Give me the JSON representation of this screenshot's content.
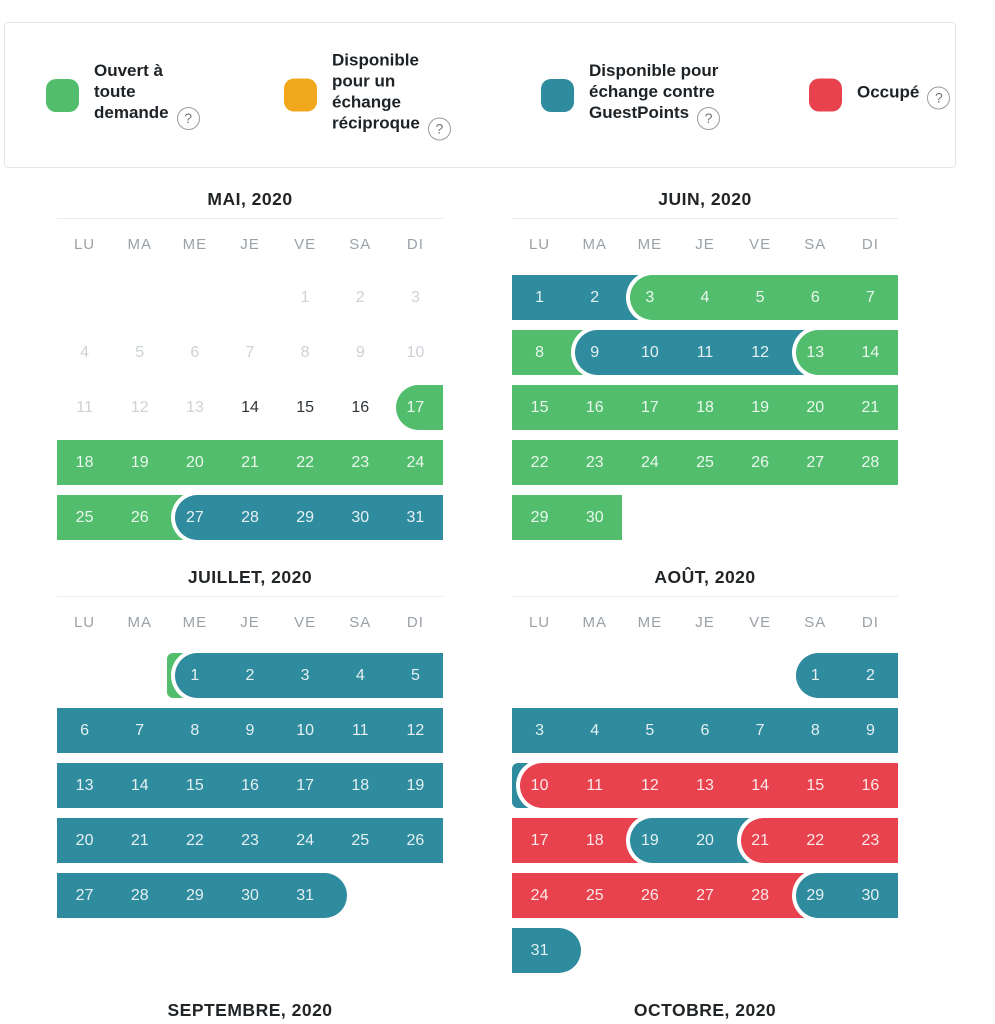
{
  "legend": {
    "items": [
      {
        "name": "open-to-any-request",
        "label": "Ouvert à\ntoute\ndemande",
        "color": "#52BE6D",
        "help": "?"
      },
      {
        "name": "reciprocal-exchange",
        "label": "Disponible\npour un\néchange\nréciproque",
        "color": "#F2A81D",
        "help": "?"
      },
      {
        "name": "guestpoints-exchange",
        "label": "Disponible pour\néchange contre\nGuestPoints",
        "color": "#2F8B9E",
        "help": "?"
      },
      {
        "name": "occupied",
        "label": "Occupé",
        "color": "#E8424E",
        "help": "?"
      }
    ]
  },
  "colors": {
    "green": "#52BE6D",
    "orange": "#F2A81D",
    "teal": "#2F8B9E",
    "red": "#E8424E"
  },
  "weekdays": [
    "LU",
    "MA",
    "ME",
    "JE",
    "VE",
    "SA",
    "DI"
  ],
  "months": [
    {
      "title": "MAI, 2020",
      "weeks": [
        {
          "days": [
            null,
            null,
            null,
            null,
            {
              "n": 1,
              "cls": "past"
            },
            {
              "n": 2,
              "cls": "past"
            },
            {
              "n": 3,
              "cls": "past"
            }
          ],
          "bars": []
        },
        {
          "days": [
            {
              "n": 4,
              "cls": "past"
            },
            {
              "n": 5,
              "cls": "past"
            },
            {
              "n": 6,
              "cls": "past"
            },
            {
              "n": 7,
              "cls": "past"
            },
            {
              "n": 8,
              "cls": "past"
            },
            {
              "n": 9,
              "cls": "past"
            },
            {
              "n": 10,
              "cls": "past"
            }
          ],
          "bars": []
        },
        {
          "days": [
            {
              "n": 11,
              "cls": "past"
            },
            {
              "n": 12,
              "cls": "past"
            },
            {
              "n": 13,
              "cls": "past"
            },
            {
              "n": 14,
              "cls": "plain"
            },
            {
              "n": 15,
              "cls": "plain"
            },
            {
              "n": 16,
              "cls": "plain"
            },
            {
              "n": 17,
              "cls": "on"
            }
          ],
          "bars": [
            {
              "s": 6,
              "e": 6,
              "c": "green",
              "capL": true
            }
          ]
        },
        {
          "days": [
            {
              "n": 18,
              "cls": "on"
            },
            {
              "n": 19,
              "cls": "on"
            },
            {
              "n": 20,
              "cls": "on"
            },
            {
              "n": 21,
              "cls": "on"
            },
            {
              "n": 22,
              "cls": "on"
            },
            {
              "n": 23,
              "cls": "on"
            },
            {
              "n": 24,
              "cls": "on"
            }
          ],
          "bars": [
            {
              "s": 0,
              "e": 6,
              "c": "green"
            }
          ]
        },
        {
          "days": [
            {
              "n": 25,
              "cls": "on"
            },
            {
              "n": 26,
              "cls": "on"
            },
            {
              "n": 27,
              "cls": "on"
            },
            {
              "n": 28,
              "cls": "on"
            },
            {
              "n": 29,
              "cls": "on"
            },
            {
              "n": 30,
              "cls": "on"
            },
            {
              "n": 31,
              "cls": "on"
            }
          ],
          "bars": [
            {
              "s": 0,
              "e": 1,
              "c": "green",
              "tail": true
            },
            {
              "s": 2,
              "e": 6,
              "c": "teal",
              "capL": true
            }
          ]
        }
      ]
    },
    {
      "title": "JUIN, 2020",
      "weeks": [
        {
          "days": [
            {
              "n": 1,
              "cls": "on"
            },
            {
              "n": 2,
              "cls": "on"
            },
            {
              "n": 3,
              "cls": "on"
            },
            {
              "n": 4,
              "cls": "on"
            },
            {
              "n": 5,
              "cls": "on"
            },
            {
              "n": 6,
              "cls": "on"
            },
            {
              "n": 7,
              "cls": "on"
            }
          ],
          "bars": [
            {
              "s": 0,
              "e": 1,
              "c": "teal",
              "tail": true
            },
            {
              "s": 2,
              "e": 6,
              "c": "green",
              "capL": true
            }
          ]
        },
        {
          "days": [
            {
              "n": 8,
              "cls": "on"
            },
            {
              "n": 9,
              "cls": "on"
            },
            {
              "n": 10,
              "cls": "on"
            },
            {
              "n": 11,
              "cls": "on"
            },
            {
              "n": 12,
              "cls": "on"
            },
            {
              "n": 13,
              "cls": "on"
            },
            {
              "n": 14,
              "cls": "on"
            }
          ],
          "bars": [
            {
              "s": 0,
              "e": 0,
              "c": "green",
              "tail": true
            },
            {
              "s": 1,
              "e": 4,
              "c": "teal",
              "capL": true,
              "tail": true
            },
            {
              "s": 5,
              "e": 6,
              "c": "green",
              "capL": true
            }
          ]
        },
        {
          "days": [
            {
              "n": 15,
              "cls": "on"
            },
            {
              "n": 16,
              "cls": "on"
            },
            {
              "n": 17,
              "cls": "on"
            },
            {
              "n": 18,
              "cls": "on"
            },
            {
              "n": 19,
              "cls": "on"
            },
            {
              "n": 20,
              "cls": "on"
            },
            {
              "n": 21,
              "cls": "on"
            }
          ],
          "bars": [
            {
              "s": 0,
              "e": 6,
              "c": "green"
            }
          ]
        },
        {
          "days": [
            {
              "n": 22,
              "cls": "on"
            },
            {
              "n": 23,
              "cls": "on"
            },
            {
              "n": 24,
              "cls": "on"
            },
            {
              "n": 25,
              "cls": "on"
            },
            {
              "n": 26,
              "cls": "on"
            },
            {
              "n": 27,
              "cls": "on"
            },
            {
              "n": 28,
              "cls": "on"
            }
          ],
          "bars": [
            {
              "s": 0,
              "e": 6,
              "c": "green"
            }
          ]
        },
        {
          "days": [
            {
              "n": 29,
              "cls": "on"
            },
            {
              "n": 30,
              "cls": "on"
            },
            null,
            null,
            null,
            null,
            null
          ],
          "bars": [
            {
              "s": 0,
              "e": 1,
              "c": "green"
            }
          ]
        }
      ]
    },
    {
      "title": "JUILLET, 2020",
      "weeks": [
        {
          "days": [
            null,
            null,
            {
              "n": 1,
              "cls": "on"
            },
            {
              "n": 2,
              "cls": "on"
            },
            {
              "n": 3,
              "cls": "on"
            },
            {
              "n": 4,
              "cls": "on"
            },
            {
              "n": 5,
              "cls": "on"
            }
          ],
          "bars": [
            {
              "s": 2,
              "e": 2,
              "c": "green",
              "stub": true
            },
            {
              "s": 2,
              "e": 6,
              "c": "teal",
              "capL": true
            }
          ]
        },
        {
          "days": [
            {
              "n": 6,
              "cls": "on"
            },
            {
              "n": 7,
              "cls": "on"
            },
            {
              "n": 8,
              "cls": "on"
            },
            {
              "n": 9,
              "cls": "on"
            },
            {
              "n": 10,
              "cls": "on"
            },
            {
              "n": 11,
              "cls": "on"
            },
            {
              "n": 12,
              "cls": "on"
            }
          ],
          "bars": [
            {
              "s": 0,
              "e": 6,
              "c": "teal"
            }
          ]
        },
        {
          "days": [
            {
              "n": 13,
              "cls": "on"
            },
            {
              "n": 14,
              "cls": "on"
            },
            {
              "n": 15,
              "cls": "on"
            },
            {
              "n": 16,
              "cls": "on"
            },
            {
              "n": 17,
              "cls": "on"
            },
            {
              "n": 18,
              "cls": "on"
            },
            {
              "n": 19,
              "cls": "on"
            }
          ],
          "bars": [
            {
              "s": 0,
              "e": 6,
              "c": "teal"
            }
          ]
        },
        {
          "days": [
            {
              "n": 20,
              "cls": "on"
            },
            {
              "n": 21,
              "cls": "on"
            },
            {
              "n": 22,
              "cls": "on"
            },
            {
              "n": 23,
              "cls": "on"
            },
            {
              "n": 24,
              "cls": "on"
            },
            {
              "n": 25,
              "cls": "on"
            },
            {
              "n": 26,
              "cls": "on"
            }
          ],
          "bars": [
            {
              "s": 0,
              "e": 6,
              "c": "teal"
            }
          ]
        },
        {
          "days": [
            {
              "n": 27,
              "cls": "on"
            },
            {
              "n": 28,
              "cls": "on"
            },
            {
              "n": 29,
              "cls": "on"
            },
            {
              "n": 30,
              "cls": "on"
            },
            {
              "n": 31,
              "cls": "on"
            },
            null,
            null
          ],
          "bars": [
            {
              "s": 0,
              "e": 4,
              "c": "teal",
              "capR": true
            }
          ]
        }
      ]
    },
    {
      "title": "AOÛT, 2020",
      "weeks": [
        {
          "days": [
            null,
            null,
            null,
            null,
            null,
            {
              "n": 1,
              "cls": "on"
            },
            {
              "n": 2,
              "cls": "on"
            }
          ],
          "bars": [
            {
              "s": 5,
              "e": 6,
              "c": "teal",
              "capL": true
            }
          ]
        },
        {
          "days": [
            {
              "n": 3,
              "cls": "on"
            },
            {
              "n": 4,
              "cls": "on"
            },
            {
              "n": 5,
              "cls": "on"
            },
            {
              "n": 6,
              "cls": "on"
            },
            {
              "n": 7,
              "cls": "on"
            },
            {
              "n": 8,
              "cls": "on"
            },
            {
              "n": 9,
              "cls": "on"
            }
          ],
          "bars": [
            {
              "s": 0,
              "e": 6,
              "c": "teal"
            }
          ]
        },
        {
          "days": [
            {
              "n": 10,
              "cls": "on"
            },
            {
              "n": 11,
              "cls": "on"
            },
            {
              "n": 12,
              "cls": "on"
            },
            {
              "n": 13,
              "cls": "on"
            },
            {
              "n": 14,
              "cls": "on"
            },
            {
              "n": 15,
              "cls": "on"
            },
            {
              "n": 16,
              "cls": "on"
            }
          ],
          "bars": [
            {
              "s": 0,
              "e": 0,
              "c": "teal",
              "stub": true
            },
            {
              "s": 0,
              "e": 6,
              "c": "red",
              "capL": true
            }
          ]
        },
        {
          "days": [
            {
              "n": 17,
              "cls": "on"
            },
            {
              "n": 18,
              "cls": "on"
            },
            {
              "n": 19,
              "cls": "on"
            },
            {
              "n": 20,
              "cls": "on"
            },
            {
              "n": 21,
              "cls": "on"
            },
            {
              "n": 22,
              "cls": "on"
            },
            {
              "n": 23,
              "cls": "on"
            }
          ],
          "bars": [
            {
              "s": 0,
              "e": 1,
              "c": "red",
              "tail": true
            },
            {
              "s": 2,
              "e": 3,
              "c": "teal",
              "capL": true,
              "tail": true
            },
            {
              "s": 4,
              "e": 6,
              "c": "red",
              "capL": true
            }
          ]
        },
        {
          "days": [
            {
              "n": 24,
              "cls": "on"
            },
            {
              "n": 25,
              "cls": "on"
            },
            {
              "n": 26,
              "cls": "on"
            },
            {
              "n": 27,
              "cls": "on"
            },
            {
              "n": 28,
              "cls": "on"
            },
            {
              "n": 29,
              "cls": "on"
            },
            {
              "n": 30,
              "cls": "on"
            }
          ],
          "bars": [
            {
              "s": 0,
              "e": 4,
              "c": "red",
              "tail": true
            },
            {
              "s": 5,
              "e": 6,
              "c": "teal",
              "capL": true
            }
          ]
        },
        {
          "days": [
            {
              "n": 31,
              "cls": "on"
            },
            null,
            null,
            null,
            null,
            null,
            null
          ],
          "bars": [
            {
              "s": 0,
              "e": 0,
              "c": "teal",
              "capR": true
            }
          ]
        }
      ]
    },
    {
      "title": "SEPTEMBRE, 2020",
      "weeks": []
    },
    {
      "title": "OCTOBRE, 2020",
      "weeks": []
    }
  ]
}
